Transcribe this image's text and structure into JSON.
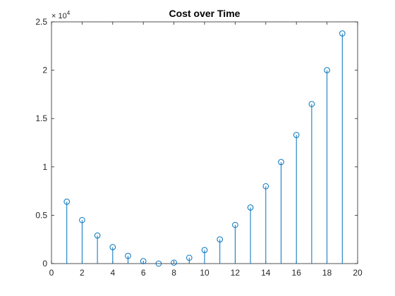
{
  "chart_data": {
    "type": "stem",
    "title": "Cost over Time",
    "xlabel": "",
    "ylabel": "",
    "xlim": [
      0,
      20
    ],
    "ylim": [
      0,
      25000
    ],
    "x_ticks": [
      0,
      2,
      4,
      6,
      8,
      10,
      12,
      14,
      16,
      18,
      20
    ],
    "y_ticks": [
      0,
      5000,
      10000,
      15000,
      20000,
      25000
    ],
    "y_tick_labels": [
      "0",
      "0.5",
      "1",
      "1.5",
      "2",
      "2.5"
    ],
    "y_exponent_base": "× 10",
    "y_exponent_power": "4",
    "grid": false,
    "color": "#0072BD",
    "x": [
      1,
      2,
      3,
      4,
      5,
      6,
      7,
      8,
      9,
      10,
      11,
      12,
      13,
      14,
      15,
      16,
      17,
      18,
      19
    ],
    "values": [
      6400,
      4500,
      2900,
      1700,
      800,
      250,
      0,
      100,
      600,
      1400,
      2500,
      4000,
      5800,
      8000,
      10500,
      13300,
      16500,
      20000,
      23800
    ]
  }
}
